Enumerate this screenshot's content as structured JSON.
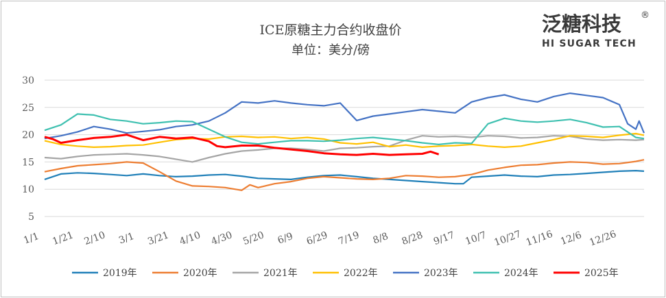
{
  "chart_data": {
    "type": "line",
    "title": "ICE原糖主力合约收盘价",
    "subtitle": "单位：美分/磅",
    "ylim": [
      5,
      30
    ],
    "yticks": [
      5,
      10,
      15,
      20,
      25,
      30
    ],
    "x_tick_labels": [
      "1/1",
      "1/21",
      "2/10",
      "3/1",
      "3/21",
      "4/10",
      "4/30",
      "5/20",
      "6/9",
      "6/29",
      "7/19",
      "8/8",
      "8/28",
      "9/17",
      "10/7",
      "10/27",
      "11/16",
      "12/6",
      "12/26"
    ],
    "x_domain": [
      0,
      365
    ],
    "grid": "horizontal",
    "legend_position": "bottom",
    "series": [
      {
        "name": "2019年",
        "color": "#1f7fb8",
        "points": [
          [
            0,
            11.8
          ],
          [
            10,
            12.8
          ],
          [
            20,
            13.0
          ],
          [
            30,
            12.9
          ],
          [
            40,
            12.7
          ],
          [
            50,
            12.5
          ],
          [
            60,
            12.8
          ],
          [
            70,
            12.5
          ],
          [
            80,
            12.3
          ],
          [
            90,
            12.4
          ],
          [
            100,
            12.6
          ],
          [
            110,
            12.7
          ],
          [
            120,
            12.4
          ],
          [
            130,
            12.0
          ],
          [
            140,
            11.9
          ],
          [
            150,
            11.8
          ],
          [
            160,
            12.2
          ],
          [
            170,
            12.5
          ],
          [
            180,
            12.6
          ],
          [
            190,
            12.3
          ],
          [
            200,
            12.0
          ],
          [
            210,
            11.8
          ],
          [
            220,
            11.6
          ],
          [
            230,
            11.4
          ],
          [
            240,
            11.2
          ],
          [
            250,
            11.0
          ],
          [
            255,
            11.0
          ],
          [
            260,
            12.2
          ],
          [
            270,
            12.4
          ],
          [
            280,
            12.6
          ],
          [
            290,
            12.4
          ],
          [
            300,
            12.3
          ],
          [
            310,
            12.6
          ],
          [
            320,
            12.7
          ],
          [
            330,
            12.9
          ],
          [
            340,
            13.1
          ],
          [
            350,
            13.3
          ],
          [
            360,
            13.4
          ],
          [
            365,
            13.3
          ]
        ]
      },
      {
        "name": "2020年",
        "color": "#ed7d31",
        "points": [
          [
            0,
            13.2
          ],
          [
            10,
            13.8
          ],
          [
            20,
            14.3
          ],
          [
            30,
            14.5
          ],
          [
            40,
            14.7
          ],
          [
            50,
            15.0
          ],
          [
            60,
            14.8
          ],
          [
            70,
            13.2
          ],
          [
            80,
            11.5
          ],
          [
            90,
            10.6
          ],
          [
            100,
            10.5
          ],
          [
            110,
            10.3
          ],
          [
            120,
            9.8
          ],
          [
            125,
            10.8
          ],
          [
            130,
            10.3
          ],
          [
            140,
            11.0
          ],
          [
            150,
            11.4
          ],
          [
            160,
            12.0
          ],
          [
            170,
            12.3
          ],
          [
            180,
            12.1
          ],
          [
            190,
            11.9
          ],
          [
            200,
            11.8
          ],
          [
            210,
            12.0
          ],
          [
            220,
            12.5
          ],
          [
            230,
            12.4
          ],
          [
            240,
            12.2
          ],
          [
            250,
            12.3
          ],
          [
            260,
            12.7
          ],
          [
            270,
            13.5
          ],
          [
            280,
            14.0
          ],
          [
            290,
            14.4
          ],
          [
            300,
            14.5
          ],
          [
            310,
            14.8
          ],
          [
            320,
            15.0
          ],
          [
            330,
            14.9
          ],
          [
            340,
            14.6
          ],
          [
            350,
            14.7
          ],
          [
            360,
            15.1
          ],
          [
            365,
            15.4
          ]
        ]
      },
      {
        "name": "2021年",
        "color": "#a5a5a5",
        "points": [
          [
            0,
            15.8
          ],
          [
            10,
            15.6
          ],
          [
            20,
            16.0
          ],
          [
            30,
            16.3
          ],
          [
            40,
            16.4
          ],
          [
            50,
            16.5
          ],
          [
            60,
            16.3
          ],
          [
            70,
            16.0
          ],
          [
            80,
            15.5
          ],
          [
            90,
            15.0
          ],
          [
            100,
            15.8
          ],
          [
            110,
            16.5
          ],
          [
            120,
            17.0
          ],
          [
            130,
            17.2
          ],
          [
            140,
            17.5
          ],
          [
            150,
            17.5
          ],
          [
            160,
            17.3
          ],
          [
            170,
            17.0
          ],
          [
            180,
            17.5
          ],
          [
            190,
            17.6
          ],
          [
            200,
            17.8
          ],
          [
            210,
            17.9
          ],
          [
            220,
            19.0
          ],
          [
            230,
            19.8
          ],
          [
            240,
            19.6
          ],
          [
            250,
            19.7
          ],
          [
            260,
            19.5
          ],
          [
            270,
            19.8
          ],
          [
            280,
            19.7
          ],
          [
            290,
            19.4
          ],
          [
            300,
            19.5
          ],
          [
            310,
            19.8
          ],
          [
            320,
            19.7
          ],
          [
            330,
            19.2
          ],
          [
            340,
            19.0
          ],
          [
            350,
            19.1
          ],
          [
            360,
            19.0
          ],
          [
            365,
            19.1
          ]
        ]
      },
      {
        "name": "2022年",
        "color": "#ffc000",
        "points": [
          [
            0,
            18.9
          ],
          [
            10,
            18.2
          ],
          [
            20,
            17.9
          ],
          [
            30,
            17.7
          ],
          [
            40,
            17.8
          ],
          [
            50,
            18.0
          ],
          [
            60,
            18.1
          ],
          [
            70,
            18.6
          ],
          [
            80,
            19.1
          ],
          [
            90,
            19.3
          ],
          [
            100,
            19.2
          ],
          [
            110,
            19.6
          ],
          [
            120,
            19.7
          ],
          [
            130,
            19.5
          ],
          [
            140,
            19.6
          ],
          [
            150,
            19.3
          ],
          [
            160,
            19.5
          ],
          [
            170,
            19.2
          ],
          [
            180,
            18.5
          ],
          [
            190,
            18.3
          ],
          [
            200,
            18.6
          ],
          [
            210,
            17.8
          ],
          [
            220,
            18.1
          ],
          [
            230,
            17.7
          ],
          [
            240,
            17.9
          ],
          [
            250,
            18.0
          ],
          [
            260,
            18.2
          ],
          [
            270,
            17.9
          ],
          [
            280,
            17.7
          ],
          [
            290,
            17.9
          ],
          [
            300,
            18.5
          ],
          [
            310,
            19.1
          ],
          [
            320,
            19.8
          ],
          [
            330,
            19.7
          ],
          [
            340,
            19.5
          ],
          [
            350,
            19.9
          ],
          [
            360,
            20.2
          ],
          [
            365,
            19.9
          ]
        ]
      },
      {
        "name": "2023年",
        "color": "#4472c4",
        "points": [
          [
            0,
            19.3
          ],
          [
            10,
            19.8
          ],
          [
            20,
            20.5
          ],
          [
            30,
            21.5
          ],
          [
            40,
            21.0
          ],
          [
            50,
            20.3
          ],
          [
            60,
            20.6
          ],
          [
            70,
            20.9
          ],
          [
            80,
            21.5
          ],
          [
            90,
            21.8
          ],
          [
            100,
            22.5
          ],
          [
            110,
            24.0
          ],
          [
            120,
            26.0
          ],
          [
            130,
            25.8
          ],
          [
            140,
            26.2
          ],
          [
            150,
            25.8
          ],
          [
            160,
            25.5
          ],
          [
            170,
            25.3
          ],
          [
            180,
            25.8
          ],
          [
            190,
            22.6
          ],
          [
            200,
            23.4
          ],
          [
            210,
            23.8
          ],
          [
            220,
            24.2
          ],
          [
            230,
            24.6
          ],
          [
            240,
            24.3
          ],
          [
            250,
            24.0
          ],
          [
            260,
            26.0
          ],
          [
            270,
            26.8
          ],
          [
            280,
            27.3
          ],
          [
            290,
            26.5
          ],
          [
            300,
            26.0
          ],
          [
            310,
            27.0
          ],
          [
            320,
            27.6
          ],
          [
            330,
            27.2
          ],
          [
            340,
            26.8
          ],
          [
            350,
            25.5
          ],
          [
            355,
            22.0
          ],
          [
            360,
            21.0
          ],
          [
            362,
            22.5
          ],
          [
            365,
            20.3
          ]
        ]
      },
      {
        "name": "2024年",
        "color": "#3ec0b0",
        "points": [
          [
            0,
            20.8
          ],
          [
            10,
            21.8
          ],
          [
            20,
            23.8
          ],
          [
            30,
            23.6
          ],
          [
            40,
            22.8
          ],
          [
            50,
            22.5
          ],
          [
            60,
            22.0
          ],
          [
            70,
            22.2
          ],
          [
            80,
            22.5
          ],
          [
            90,
            22.4
          ],
          [
            100,
            21.0
          ],
          [
            110,
            19.6
          ],
          [
            120,
            18.6
          ],
          [
            130,
            18.3
          ],
          [
            140,
            18.6
          ],
          [
            150,
            18.9
          ],
          [
            160,
            18.9
          ],
          [
            170,
            18.8
          ],
          [
            180,
            19.0
          ],
          [
            190,
            19.3
          ],
          [
            200,
            19.5
          ],
          [
            210,
            19.2
          ],
          [
            220,
            18.9
          ],
          [
            230,
            18.5
          ],
          [
            240,
            18.2
          ],
          [
            250,
            18.5
          ],
          [
            260,
            18.4
          ],
          [
            270,
            22.0
          ],
          [
            280,
            23.0
          ],
          [
            290,
            22.5
          ],
          [
            300,
            22.3
          ],
          [
            310,
            22.5
          ],
          [
            320,
            22.8
          ],
          [
            330,
            22.2
          ],
          [
            340,
            21.4
          ],
          [
            350,
            21.5
          ],
          [
            360,
            19.5
          ],
          [
            365,
            19.3
          ]
        ]
      },
      {
        "name": "2025年",
        "color": "#ff0000",
        "points": [
          [
            0,
            19.6
          ],
          [
            5,
            19.2
          ],
          [
            10,
            18.5
          ],
          [
            20,
            19.0
          ],
          [
            30,
            19.4
          ],
          [
            40,
            19.6
          ],
          [
            50,
            20.0
          ],
          [
            60,
            19.0
          ],
          [
            70,
            19.6
          ],
          [
            80,
            19.3
          ],
          [
            90,
            19.5
          ],
          [
            100,
            18.8
          ],
          [
            105,
            17.9
          ],
          [
            110,
            17.7
          ],
          [
            120,
            18.0
          ],
          [
            130,
            18.0
          ],
          [
            140,
            17.6
          ],
          [
            150,
            17.3
          ],
          [
            160,
            17.0
          ],
          [
            170,
            16.6
          ],
          [
            180,
            16.4
          ],
          [
            190,
            16.3
          ],
          [
            200,
            16.5
          ],
          [
            210,
            16.3
          ],
          [
            220,
            16.4
          ],
          [
            230,
            16.5
          ],
          [
            235,
            16.9
          ],
          [
            240,
            16.4
          ]
        ]
      }
    ]
  },
  "logo": {
    "cn": "泛糖科技",
    "en": "HI SUGAR TECH",
    "registered": "®"
  }
}
